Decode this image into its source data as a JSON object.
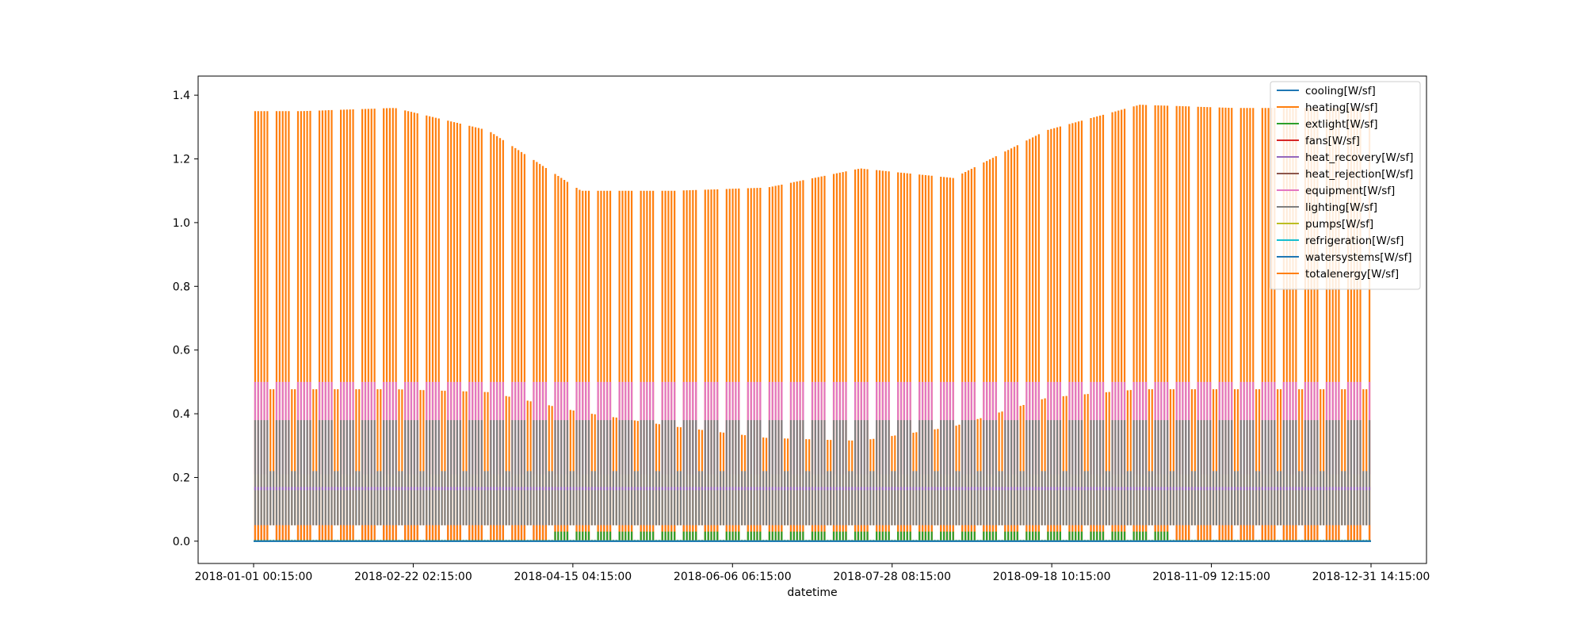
{
  "chart_data": {
    "type": "line",
    "title": "",
    "xlabel": "datetime",
    "ylabel": "",
    "x_start": "2018-01-01 00:15:00",
    "x_end": "2018-12-31 14:15:00",
    "x_tick_labels": [
      "2018-01-01 00:15:00",
      "2018-02-22 02:15:00",
      "2018-04-15 04:15:00",
      "2018-06-06 06:15:00",
      "2018-07-28 08:15:00",
      "2018-09-18 10:15:00",
      "2018-11-09 12:15:00",
      "2018-12-31 14:15:00"
    ],
    "y_ticks": [
      0.0,
      0.2,
      0.4,
      0.6,
      0.8,
      1.0,
      1.2,
      1.4
    ],
    "y_tick_labels": [
      "0.0",
      "0.2",
      "0.4",
      "0.6",
      "0.8",
      "1.0",
      "1.2",
      "1.4"
    ],
    "ylim": [
      -0.07,
      1.46
    ],
    "grid": false,
    "legend_position": "top-right",
    "sampling": "daily envelope (min/max of 15-minute data), weekday/weekend cycle",
    "series": [
      {
        "name": "cooling[W/sf]",
        "color": "#1f77b4",
        "range": [
          0.0,
          0.0
        ]
      },
      {
        "name": "heating[W/sf]",
        "color": "#ff7f0e",
        "range": [
          0.0,
          0.05
        ]
      },
      {
        "name": "extlight[W/sf]",
        "color": "#2ca02c",
        "range": [
          0.0,
          0.03
        ]
      },
      {
        "name": "fans[W/sf]",
        "color": "#d62728",
        "range": [
          0.0,
          0.31
        ]
      },
      {
        "name": "heat_recovery[W/sf]",
        "color": "#9467bd",
        "range": [
          0.16,
          0.17
        ]
      },
      {
        "name": "heat_rejection[W/sf]",
        "color": "#8c564b",
        "range": [
          0.0,
          0.0
        ]
      },
      {
        "name": "equipment[W/sf]",
        "color": "#e377c2",
        "range": [
          0.21,
          0.52
        ]
      },
      {
        "name": "lighting[W/sf]",
        "color": "#7f7f7f",
        "range": [
          0.05,
          0.38
        ]
      },
      {
        "name": "pumps[W/sf]",
        "color": "#bcbd22",
        "range": [
          0.0,
          0.0
        ]
      },
      {
        "name": "refrigeration[W/sf]",
        "color": "#17becf",
        "range": [
          0.0,
          0.0
        ]
      },
      {
        "name": "watersystems[W/sf]",
        "color": "#1f77b4",
        "range": [
          0.0,
          0.0
        ]
      },
      {
        "name": "totalenergy[W/sf]",
        "color": "#ff7f0e",
        "weekly_peak_months": [
          "Jan",
          "Feb",
          "Mar",
          "Apr",
          "May",
          "Jun",
          "Jul",
          "Aug",
          "Sep",
          "Oct",
          "Nov",
          "Dec"
        ],
        "weekly_peak_values": [
          1.35,
          1.36,
          1.29,
          1.1,
          1.1,
          1.11,
          1.17,
          1.14,
          1.29,
          1.37,
          1.36,
          1.36
        ],
        "baseline_values": [
          0.53,
          0.53,
          0.52,
          0.45,
          0.4,
          0.36,
          0.35,
          0.4,
          0.5,
          0.53,
          0.53,
          0.53
        ],
        "weekend_level": 0.05
      }
    ]
  }
}
